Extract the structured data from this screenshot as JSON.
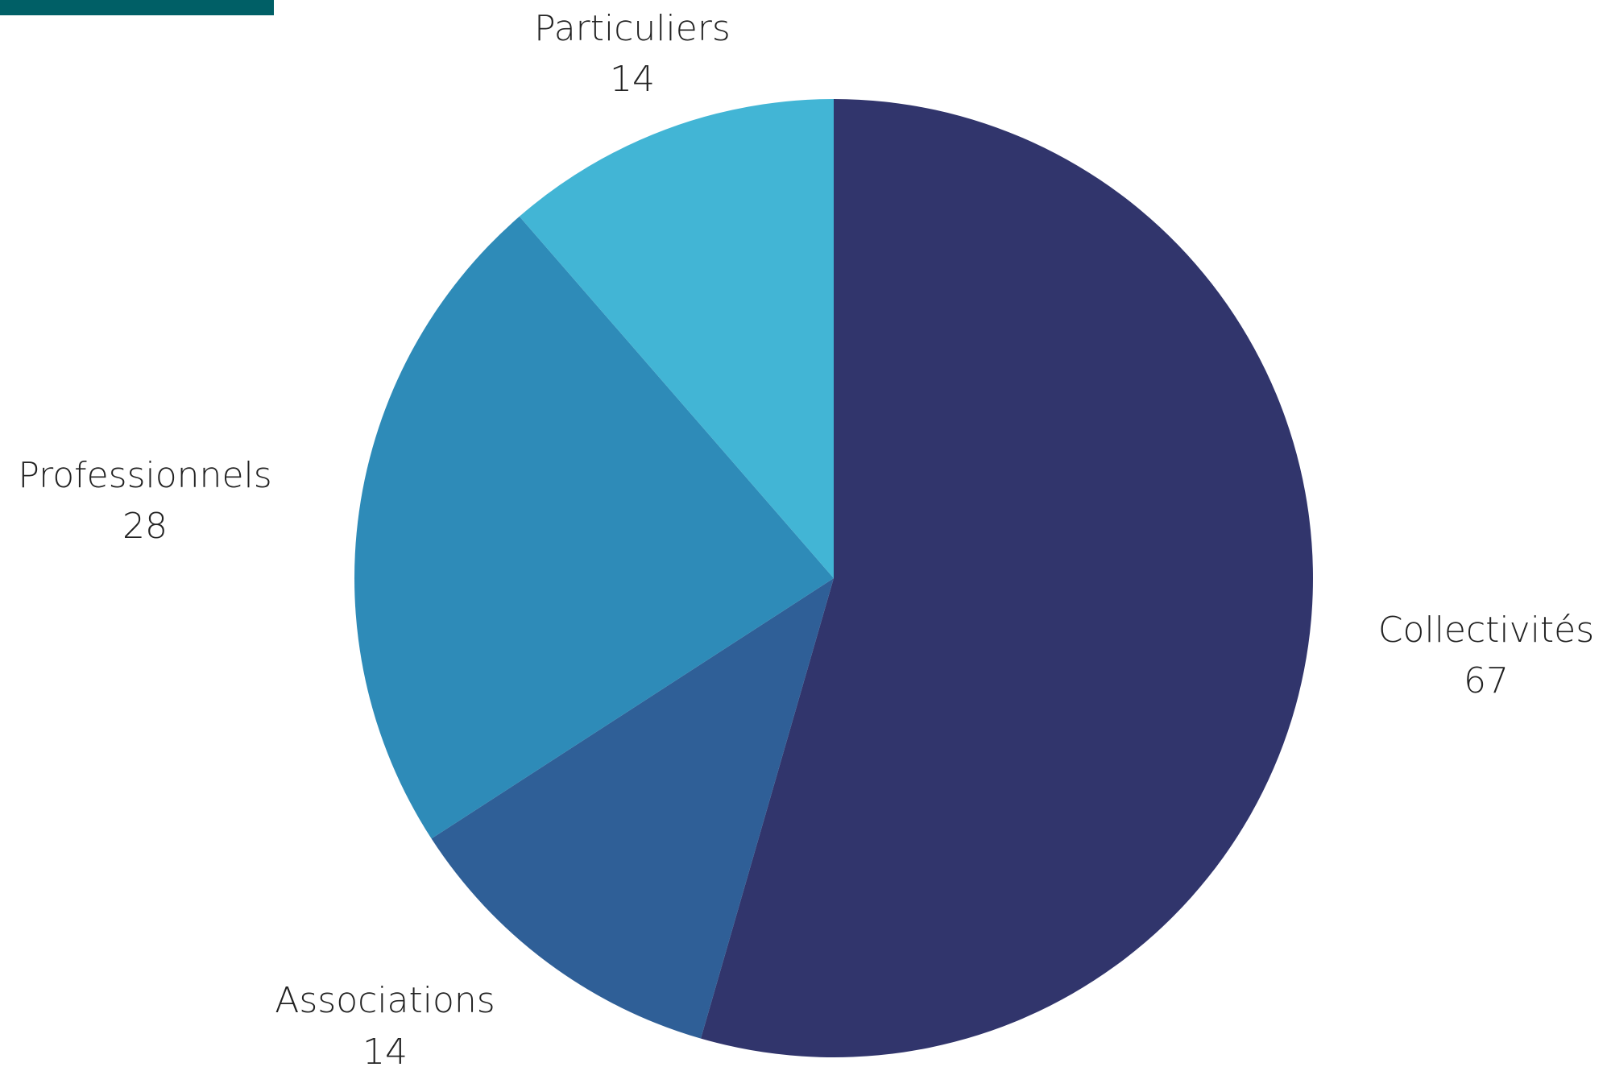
{
  "accent_bar": {
    "color": "#005f66"
  },
  "chart_data": {
    "type": "pie",
    "title": "",
    "start": "top",
    "direction": "clockwise",
    "slices": [
      {
        "label": "Collectivités",
        "value": 67,
        "color": "#31356c"
      },
      {
        "label": "Associations",
        "value": 14,
        "color": "#2f5f97"
      },
      {
        "label": "Professionnels",
        "value": 28,
        "color": "#2e8bb8"
      },
      {
        "label": "Particuliers",
        "value": 14,
        "color": "#42b5d5"
      }
    ]
  }
}
